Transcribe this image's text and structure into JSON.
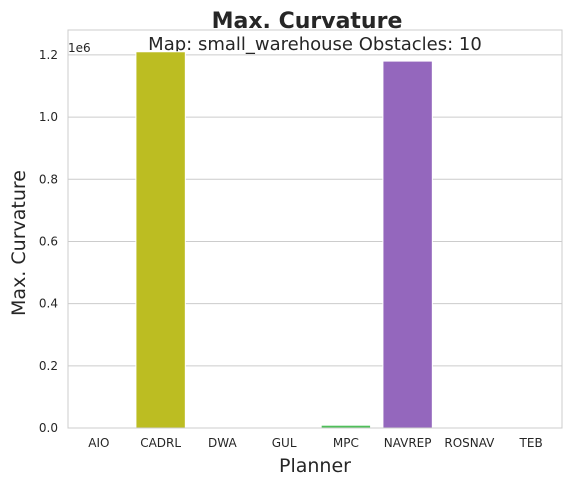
{
  "chart_data": {
    "type": "bar",
    "title": "Max. Curvature",
    "subtitle": "Map: small_warehouse Obstacles: 10",
    "xlabel": "Planner",
    "ylabel": "Max. Curvature",
    "y_offset_label": "1e6",
    "categories": [
      "AIO",
      "CADRL",
      "DWA",
      "GUL",
      "MPC",
      "NAVREP",
      "ROSNAV",
      "TEB"
    ],
    "values": [
      0,
      1210000,
      0,
      0,
      9000,
      1180000,
      0,
      0
    ],
    "colors": [
      "#1f77b4",
      "#bcbd22",
      "#17becf",
      "#ff7f0e",
      "#4fbf5a",
      "#9467bd",
      "#8c564b",
      "#e377c2"
    ],
    "ylim": [
      0,
      1280000
    ],
    "yticks": [
      0,
      200000,
      400000,
      600000,
      800000,
      1000000,
      1200000
    ],
    "ytick_labels": [
      "0.0",
      "0.2",
      "0.4",
      "0.6",
      "0.8",
      "1.0",
      "1.2"
    ],
    "grid": "horizontal",
    "style": {
      "grid_color": "#cccccc",
      "spine_color": "#cccccc",
      "text_color": "#262626",
      "bar_edge_color": "#ffffff"
    }
  }
}
